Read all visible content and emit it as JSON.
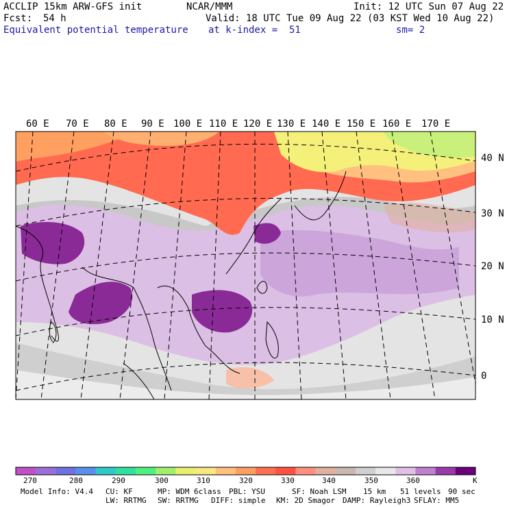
{
  "header": {
    "model": "ACCLIP 15km ARW-GFS init",
    "org": "NCAR/MMM",
    "init": "Init: 12 UTC Sun 07 Aug 22",
    "fcst_label": "Fcst:",
    "fcst_value": "54 h",
    "valid": "Valid: 18 UTC Tue 09 Aug 22 (03 KST Wed 10 Aug 22)",
    "field": "Equivalent potential temperature",
    "level": "at k-index =  51",
    "smooth": "sm= 2"
  },
  "map": {
    "lon_labels": [
      "60 E",
      "70 E",
      "80 E",
      "90 E",
      "100 E",
      "110 E",
      "120 E",
      "130 E",
      "140 E",
      "150 E",
      "160 E",
      "170 E"
    ],
    "lat_labels": [
      "40 N",
      "30 N",
      "20 N",
      "10 N",
      "0"
    ],
    "colors": {
      "warm": "#ff6a50",
      "orange": "#ffb070",
      "yellow": "#f4f07a",
      "green": "#c4f07a",
      "purple_dark": "#8a2a96",
      "purple_light": "#d8b4e0",
      "gray": "#c8c8c8",
      "light_gray": "#e8e8e8"
    }
  },
  "colorbar": {
    "colors": [
      "#c050c8",
      "#9a70d8",
      "#7070e0",
      "#5a90ec",
      "#30c8c8",
      "#30e0a0",
      "#50f080",
      "#a0f070",
      "#e8f070",
      "#f8e880",
      "#ffc080",
      "#ffa060",
      "#ff7050",
      "#ff5040",
      "#ff9080",
      "#e0b0a0",
      "#c8b8b0",
      "#d0d0d0",
      "#e8e8e8",
      "#e0c0e8",
      "#c080d0",
      "#9a3aa8",
      "#6a007a"
    ],
    "ticks": [
      "270",
      "280",
      "290",
      "300",
      "310",
      "320",
      "330",
      "340",
      "350",
      "360"
    ],
    "unit": "K"
  },
  "footer": {
    "line1": [
      "Model Info: V4.4",
      "CU: KF",
      "MP: WDM 6class",
      "PBL: YSU",
      "SF: Noah LSM",
      "15 km",
      "51 levels",
      "90 sec"
    ],
    "line2": [
      "LW: RRTMG",
      "SW: RRTMG",
      "DIFF: simple",
      "KM: 2D Smagor",
      "DAMP: Rayleigh3",
      "SFLAY: MM5"
    ]
  }
}
